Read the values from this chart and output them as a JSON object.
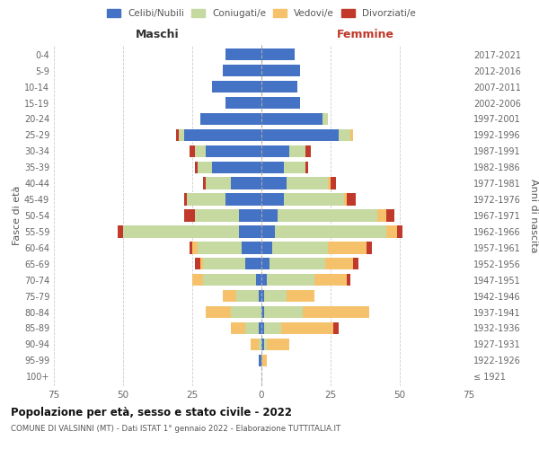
{
  "age_groups": [
    "100+",
    "95-99",
    "90-94",
    "85-89",
    "80-84",
    "75-79",
    "70-74",
    "65-69",
    "60-64",
    "55-59",
    "50-54",
    "45-49",
    "40-44",
    "35-39",
    "30-34",
    "25-29",
    "20-24",
    "15-19",
    "10-14",
    "5-9",
    "0-4"
  ],
  "birth_years": [
    "≤ 1921",
    "1922-1926",
    "1927-1931",
    "1932-1936",
    "1937-1941",
    "1942-1946",
    "1947-1951",
    "1952-1956",
    "1957-1961",
    "1962-1966",
    "1967-1971",
    "1972-1976",
    "1977-1981",
    "1982-1986",
    "1987-1991",
    "1992-1996",
    "1997-2001",
    "2002-2006",
    "2007-2011",
    "2012-2016",
    "2017-2021"
  ],
  "male_celibi": [
    0,
    1,
    0,
    1,
    0,
    1,
    2,
    6,
    7,
    8,
    8,
    13,
    11,
    18,
    20,
    28,
    22,
    13,
    18,
    14,
    13
  ],
  "male_coniugati": [
    0,
    0,
    1,
    5,
    11,
    8,
    19,
    15,
    16,
    42,
    16,
    14,
    9,
    5,
    4,
    2,
    0,
    0,
    0,
    0,
    0
  ],
  "male_vedovi": [
    0,
    0,
    3,
    5,
    9,
    5,
    4,
    1,
    2,
    0,
    0,
    0,
    0,
    0,
    0,
    0,
    0,
    0,
    0,
    0,
    0
  ],
  "male_divorziati": [
    0,
    0,
    0,
    0,
    0,
    0,
    0,
    2,
    1,
    2,
    4,
    1,
    1,
    1,
    2,
    1,
    0,
    0,
    0,
    0,
    0
  ],
  "female_celibi": [
    0,
    0,
    1,
    1,
    1,
    1,
    2,
    3,
    4,
    5,
    6,
    8,
    9,
    8,
    10,
    28,
    22,
    14,
    13,
    14,
    12
  ],
  "female_coniugati": [
    0,
    0,
    1,
    6,
    14,
    8,
    17,
    20,
    20,
    40,
    36,
    22,
    15,
    8,
    6,
    4,
    2,
    0,
    0,
    0,
    0
  ],
  "female_vedovi": [
    0,
    2,
    8,
    19,
    24,
    10,
    12,
    10,
    14,
    4,
    3,
    1,
    1,
    0,
    0,
    1,
    0,
    0,
    0,
    0,
    0
  ],
  "female_divorziati": [
    0,
    0,
    0,
    2,
    0,
    0,
    1,
    2,
    2,
    2,
    3,
    3,
    2,
    1,
    2,
    0,
    0,
    0,
    0,
    0,
    0
  ],
  "color_celibi": "#4472c4",
  "color_coniugati": "#c5d9a0",
  "color_vedovi": "#f5c26b",
  "color_divorziati": "#c0392b",
  "xlim": 75,
  "title_main": "Popolazione per età, sesso e stato civile - 2022",
  "title_sub": "COMUNE DI VALSINNI (MT) - Dati ISTAT 1° gennaio 2022 - Elaborazione TUTTITALIA.IT",
  "ylabel_left": "Fasce di età",
  "ylabel_right": "Anni di nascita",
  "xlabel_left": "Maschi",
  "xlabel_right": "Femmine",
  "legend_labels": [
    "Celibi/Nubili",
    "Coniugati/e",
    "Vedovi/e",
    "Divorziati/e"
  ],
  "bg_color": "#ffffff",
  "grid_color": "#cccccc"
}
